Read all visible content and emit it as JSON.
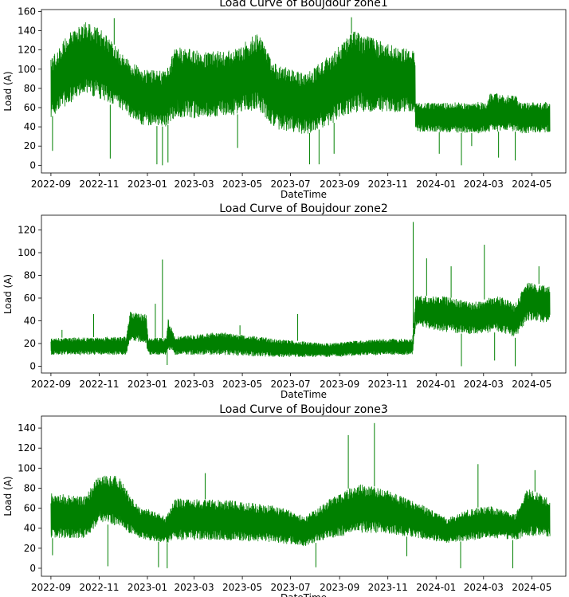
{
  "line_color": "#008000",
  "chart_data": [
    {
      "type": "line",
      "title": "Load Curve of Boujdour zone1",
      "xlabel": "DateTime",
      "ylabel": "Load (A)",
      "xlim": [
        "2022-08-20",
        "2024-06-13"
      ],
      "ylim": [
        -8,
        162
      ],
      "x_ticks": [
        {
          "date": "2022-09-01",
          "label": "2022-09"
        },
        {
          "date": "2022-11-01",
          "label": "2022-11"
        },
        {
          "date": "2023-01-01",
          "label": "2023-01"
        },
        {
          "date": "2023-03-01",
          "label": "2023-03"
        },
        {
          "date": "2023-05-01",
          "label": "2023-05"
        },
        {
          "date": "2023-07-01",
          "label": "2023-07"
        },
        {
          "date": "2023-09-01",
          "label": "2023-09"
        },
        {
          "date": "2023-11-01",
          "label": "2023-11"
        },
        {
          "date": "2024-01-01",
          "label": "2024-01"
        },
        {
          "date": "2024-03-01",
          "label": "2024-03"
        },
        {
          "date": "2024-05-01",
          "label": "2024-05"
        }
      ],
      "y_ticks": [
        {
          "value": 0,
          "label": "0"
        },
        {
          "value": 20,
          "label": "20"
        },
        {
          "value": 40,
          "label": "40"
        },
        {
          "value": 60,
          "label": "60"
        },
        {
          "value": 80,
          "label": "80"
        },
        {
          "value": 100,
          "label": "100"
        },
        {
          "value": 120,
          "label": "120"
        },
        {
          "value": 140,
          "label": "140"
        },
        {
          "value": 160,
          "label": "160"
        }
      ],
      "series": [
        {
          "name": "zone1",
          "x_start": "2022-09-01",
          "x_end": "2024-05-24",
          "envelope": [
            {
              "date": "2022-09-01",
              "low": 50,
              "high": 110
            },
            {
              "date": "2022-09-20",
              "low": 62,
              "high": 135
            },
            {
              "date": "2022-10-15",
              "low": 75,
              "high": 150
            },
            {
              "date": "2022-11-05",
              "low": 68,
              "high": 140
            },
            {
              "date": "2022-12-01",
              "low": 55,
              "high": 115
            },
            {
              "date": "2022-12-25",
              "low": 42,
              "high": 100
            },
            {
              "date": "2023-01-25",
              "low": 40,
              "high": 98
            },
            {
              "date": "2023-02-05",
              "low": 50,
              "high": 125
            },
            {
              "date": "2023-03-15",
              "low": 48,
              "high": 118
            },
            {
              "date": "2023-04-20",
              "low": 52,
              "high": 120
            },
            {
              "date": "2023-05-20",
              "low": 58,
              "high": 138
            },
            {
              "date": "2023-06-10",
              "low": 38,
              "high": 108
            },
            {
              "date": "2023-07-20",
              "low": 32,
              "high": 95
            },
            {
              "date": "2023-08-15",
              "low": 40,
              "high": 112
            },
            {
              "date": "2023-09-20",
              "low": 55,
              "high": 140
            },
            {
              "date": "2023-10-25",
              "low": 55,
              "high": 128
            },
            {
              "date": "2023-12-05",
              "low": 55,
              "high": 120
            },
            {
              "date": "2023-12-06",
              "low": 35,
              "high": 65
            },
            {
              "date": "2024-03-05",
              "low": 33,
              "high": 66
            },
            {
              "date": "2024-03-10",
              "low": 35,
              "high": 76
            },
            {
              "date": "2024-04-12",
              "low": 35,
              "high": 72
            },
            {
              "date": "2024-04-15",
              "low": 33,
              "high": 65
            },
            {
              "date": "2024-05-24",
              "low": 34,
              "high": 66
            }
          ],
          "spikes": [
            {
              "date": "2022-09-03",
              "value": 15
            },
            {
              "date": "2022-11-15",
              "value": 7
            },
            {
              "date": "2022-11-20",
              "value": 153
            },
            {
              "date": "2023-01-13",
              "value": 1
            },
            {
              "date": "2023-01-20",
              "value": 0
            },
            {
              "date": "2023-01-27",
              "value": 3
            },
            {
              "date": "2023-04-25",
              "value": 18
            },
            {
              "date": "2023-07-25",
              "value": 1
            },
            {
              "date": "2023-08-06",
              "value": 1
            },
            {
              "date": "2023-08-25",
              "value": 12
            },
            {
              "date": "2023-09-16",
              "value": 154
            },
            {
              "date": "2024-01-05",
              "value": 12
            },
            {
              "date": "2024-02-02",
              "value": 0
            },
            {
              "date": "2024-02-15",
              "value": 20
            },
            {
              "date": "2024-03-20",
              "value": 8
            },
            {
              "date": "2024-04-10",
              "value": 5
            }
          ]
        }
      ]
    },
    {
      "type": "line",
      "title": "Load Curve of Boujdour zone2",
      "xlabel": "DateTime",
      "ylabel": "Load (A)",
      "xlim": [
        "2022-08-20",
        "2024-06-13"
      ],
      "ylim": [
        -6,
        133
      ],
      "x_ticks": [
        {
          "date": "2022-09-01",
          "label": "2022-09"
        },
        {
          "date": "2022-11-01",
          "label": "2022-11"
        },
        {
          "date": "2023-01-01",
          "label": "2023-01"
        },
        {
          "date": "2023-03-01",
          "label": "2023-03"
        },
        {
          "date": "2023-05-01",
          "label": "2023-05"
        },
        {
          "date": "2023-07-01",
          "label": "2023-07"
        },
        {
          "date": "2023-09-01",
          "label": "2023-09"
        },
        {
          "date": "2023-11-01",
          "label": "2023-11"
        },
        {
          "date": "2024-01-01",
          "label": "2024-01"
        },
        {
          "date": "2024-03-01",
          "label": "2024-03"
        },
        {
          "date": "2024-05-01",
          "label": "2024-05"
        }
      ],
      "y_ticks": [
        {
          "value": 0,
          "label": "0"
        },
        {
          "value": 20,
          "label": "20"
        },
        {
          "value": 40,
          "label": "40"
        },
        {
          "value": 60,
          "label": "60"
        },
        {
          "value": 80,
          "label": "80"
        },
        {
          "value": 100,
          "label": "100"
        },
        {
          "value": 120,
          "label": "120"
        }
      ],
      "series": [
        {
          "name": "zone2",
          "x_start": "2022-09-01",
          "x_end": "2024-05-24",
          "envelope": [
            {
              "date": "2022-09-01",
              "low": 10,
              "high": 25
            },
            {
              "date": "2022-12-05",
              "low": 10,
              "high": 26
            },
            {
              "date": "2022-12-10",
              "low": 22,
              "high": 48
            },
            {
              "date": "2022-12-30",
              "low": 20,
              "high": 46
            },
            {
              "date": "2023-01-02",
              "low": 10,
              "high": 25
            },
            {
              "date": "2023-01-25",
              "low": 10,
              "high": 25
            },
            {
              "date": "2023-01-27",
              "low": 15,
              "high": 42
            },
            {
              "date": "2023-02-05",
              "low": 10,
              "high": 26
            },
            {
              "date": "2023-04-01",
              "low": 10,
              "high": 30
            },
            {
              "date": "2023-06-15",
              "low": 8,
              "high": 24
            },
            {
              "date": "2023-08-15",
              "low": 8,
              "high": 20
            },
            {
              "date": "2023-10-15",
              "low": 10,
              "high": 24
            },
            {
              "date": "2023-12-02",
              "low": 10,
              "high": 24
            },
            {
              "date": "2023-12-06",
              "low": 35,
              "high": 62
            },
            {
              "date": "2024-01-10",
              "low": 30,
              "high": 62
            },
            {
              "date": "2024-02-15",
              "low": 28,
              "high": 56
            },
            {
              "date": "2024-03-20",
              "low": 30,
              "high": 62
            },
            {
              "date": "2024-04-10",
              "low": 25,
              "high": 55
            },
            {
              "date": "2024-04-25",
              "low": 40,
              "high": 75
            },
            {
              "date": "2024-05-24",
              "low": 38,
              "high": 70
            }
          ],
          "spikes": [
            {
              "date": "2022-09-15",
              "value": 32
            },
            {
              "date": "2022-10-25",
              "value": 46
            },
            {
              "date": "2023-01-11",
              "value": 55
            },
            {
              "date": "2023-01-20",
              "value": 94
            },
            {
              "date": "2023-01-26",
              "value": 1
            },
            {
              "date": "2023-04-28",
              "value": 36
            },
            {
              "date": "2023-07-10",
              "value": 46
            },
            {
              "date": "2023-12-03",
              "value": 127
            },
            {
              "date": "2023-12-20",
              "value": 95
            },
            {
              "date": "2024-01-20",
              "value": 88
            },
            {
              "date": "2024-02-02",
              "value": 0
            },
            {
              "date": "2024-03-02",
              "value": 107
            },
            {
              "date": "2024-03-15",
              "value": 5
            },
            {
              "date": "2024-04-10",
              "value": 0
            },
            {
              "date": "2024-05-10",
              "value": 88
            }
          ]
        }
      ]
    },
    {
      "type": "line",
      "title": "Load Curve of Boujdour zone3",
      "xlabel": "DateTime",
      "ylabel": "Load (A)",
      "xlim": [
        "2022-08-20",
        "2024-06-13"
      ],
      "ylim": [
        -8,
        152
      ],
      "x_ticks": [
        {
          "date": "2022-09-01",
          "label": "2022-09"
        },
        {
          "date": "2022-11-01",
          "label": "2022-11"
        },
        {
          "date": "2023-01-01",
          "label": "2023-01"
        },
        {
          "date": "2023-03-01",
          "label": "2023-03"
        },
        {
          "date": "2023-05-01",
          "label": "2023-05"
        },
        {
          "date": "2023-07-01",
          "label": "2023-07"
        },
        {
          "date": "2023-09-01",
          "label": "2023-09"
        },
        {
          "date": "2023-11-01",
          "label": "2023-11"
        },
        {
          "date": "2024-01-01",
          "label": "2024-01"
        },
        {
          "date": "2024-03-01",
          "label": "2024-03"
        },
        {
          "date": "2024-05-01",
          "label": "2024-05"
        }
      ],
      "y_ticks": [
        {
          "value": 0,
          "label": "0"
        },
        {
          "value": 20,
          "label": "20"
        },
        {
          "value": 40,
          "label": "40"
        },
        {
          "value": 60,
          "label": "60"
        },
        {
          "value": 80,
          "label": "80"
        },
        {
          "value": 100,
          "label": "100"
        },
        {
          "value": 120,
          "label": "120"
        },
        {
          "value": 140,
          "label": "140"
        }
      ],
      "series": [
        {
          "name": "zone3",
          "x_start": "2022-09-01",
          "x_end": "2024-05-24",
          "envelope": [
            {
              "date": "2022-09-01",
              "low": 30,
              "high": 75
            },
            {
              "date": "2022-10-15",
              "low": 30,
              "high": 72
            },
            {
              "date": "2022-11-01",
              "low": 45,
              "high": 95
            },
            {
              "date": "2022-11-25",
              "low": 42,
              "high": 92
            },
            {
              "date": "2022-12-20",
              "low": 30,
              "high": 62
            },
            {
              "date": "2023-01-25",
              "low": 25,
              "high": 52
            },
            {
              "date": "2023-02-05",
              "low": 28,
              "high": 70
            },
            {
              "date": "2023-04-15",
              "low": 28,
              "high": 68
            },
            {
              "date": "2023-06-15",
              "low": 25,
              "high": 62
            },
            {
              "date": "2023-07-20",
              "low": 22,
              "high": 52
            },
            {
              "date": "2023-08-20",
              "low": 30,
              "high": 70
            },
            {
              "date": "2023-09-25",
              "low": 35,
              "high": 85
            },
            {
              "date": "2023-10-25",
              "low": 35,
              "high": 80
            },
            {
              "date": "2023-12-10",
              "low": 30,
              "high": 65
            },
            {
              "date": "2024-01-15",
              "low": 25,
              "high": 50
            },
            {
              "date": "2024-02-15",
              "low": 28,
              "high": 60
            },
            {
              "date": "2024-03-10",
              "low": 30,
              "high": 62
            },
            {
              "date": "2024-04-10",
              "low": 28,
              "high": 55
            },
            {
              "date": "2024-04-25",
              "low": 32,
              "high": 80
            },
            {
              "date": "2024-05-24",
              "low": 30,
              "high": 70
            }
          ],
          "spikes": [
            {
              "date": "2022-09-03",
              "value": 13
            },
            {
              "date": "2022-11-12",
              "value": 2
            },
            {
              "date": "2023-01-15",
              "value": 1
            },
            {
              "date": "2023-01-26",
              "value": 0
            },
            {
              "date": "2023-03-15",
              "value": 95
            },
            {
              "date": "2023-08-02",
              "value": 1
            },
            {
              "date": "2023-09-12",
              "value": 133
            },
            {
              "date": "2023-10-15",
              "value": 145
            },
            {
              "date": "2023-11-25",
              "value": 12
            },
            {
              "date": "2024-02-01",
              "value": 0
            },
            {
              "date": "2024-02-23",
              "value": 104
            },
            {
              "date": "2024-04-07",
              "value": 0
            },
            {
              "date": "2024-05-05",
              "value": 98
            }
          ]
        }
      ]
    }
  ]
}
